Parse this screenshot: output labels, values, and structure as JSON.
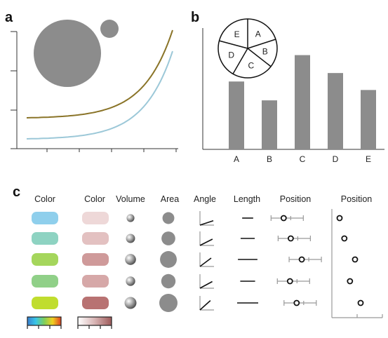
{
  "panel_a": {
    "label": "a",
    "circles": [
      {
        "name": "large",
        "color": "#8c8c8c"
      },
      {
        "name": "small",
        "color": "#8c8c8c"
      }
    ],
    "curves": [
      {
        "name": "olive-curve",
        "color": "#8a7428"
      },
      {
        "name": "blue-curve",
        "color": "#9cc8d8"
      }
    ]
  },
  "panel_b": {
    "label": "b",
    "pie_labels": [
      "A",
      "B",
      "C",
      "D",
      "E"
    ],
    "bar_color": "#8c8c8c"
  },
  "chart_data": {
    "type": "bar",
    "categories": [
      "A",
      "B",
      "C",
      "D",
      "E"
    ],
    "values": [
      0.72,
      0.52,
      1.0,
      0.81,
      0.63
    ],
    "ylim": [
      0,
      1.25
    ],
    "xlabel": "",
    "ylabel": "",
    "title": ""
  },
  "panel_c": {
    "label": "c",
    "columns": [
      "Color",
      "Color",
      "Volume",
      "Area",
      "Angle",
      "Length",
      "Position",
      "Position"
    ],
    "rows": [
      {
        "hue": "#8fcfec",
        "shade": "#eed8d8",
        "size": 0.35,
        "angle": 0.3,
        "length": 0.35,
        "pos1": 0.22,
        "pos2": 0.05
      },
      {
        "hue": "#8ed3c2",
        "shade": "#e3c1c1",
        "size": 0.55,
        "angle": 0.55,
        "length": 0.55,
        "pos1": 0.4,
        "pos2": 0.22
      },
      {
        "hue": "#a5d65c",
        "shade": "#cf9a9a",
        "size": 0.85,
        "angle": 0.85,
        "length": 0.9,
        "pos1": 0.68,
        "pos2": 0.6
      },
      {
        "hue": "#90d088",
        "shade": "#d6a8a8",
        "size": 0.6,
        "angle": 0.6,
        "length": 0.6,
        "pos1": 0.38,
        "pos2": 0.42
      },
      {
        "hue": "#c0dd2e",
        "shade": "#b87272",
        "size": 1.0,
        "angle": 1.0,
        "length": 1.0,
        "pos1": 0.55,
        "pos2": 0.8
      }
    ],
    "legend_hue_colors": [
      "#3a7fd0",
      "#39c6e8",
      "#7fcf5a",
      "#f0d020",
      "#e04020"
    ],
    "legend_shade_colors": [
      "#ffffff",
      "#d8b4b4",
      "#9e5a5a"
    ]
  }
}
